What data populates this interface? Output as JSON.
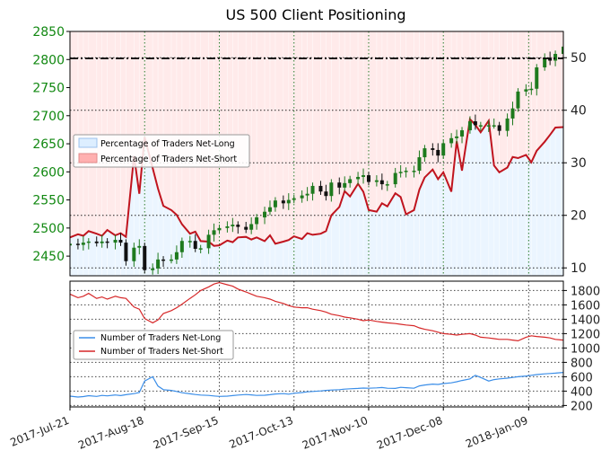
{
  "chart_data": {
    "title": "US 500 Client Positioning",
    "type": "line",
    "x_tick_labels": [
      "2017-Jul-21",
      "2017-Aug-18",
      "2017-Sep-15",
      "2017-Oct-13",
      "2017-Nov-10",
      "2017-Dec-08",
      "2018-Jan-09"
    ],
    "dates": [
      "2017-07-21",
      "2017-07-24",
      "2017-07-26",
      "2017-07-28",
      "2017-07-31",
      "2017-08-02",
      "2017-08-04",
      "2017-08-07",
      "2017-08-09",
      "2017-08-11",
      "2017-08-14",
      "2017-08-16",
      "2017-08-18",
      "2017-08-21",
      "2017-08-23",
      "2017-08-25",
      "2017-08-28",
      "2017-08-30",
      "2017-09-01",
      "2017-09-04",
      "2017-09-06",
      "2017-09-08",
      "2017-09-11",
      "2017-09-13",
      "2017-09-15",
      "2017-09-18",
      "2017-09-20",
      "2017-09-22",
      "2017-09-25",
      "2017-09-27",
      "2017-09-29",
      "2017-10-02",
      "2017-10-04",
      "2017-10-06",
      "2017-10-09",
      "2017-10-11",
      "2017-10-13",
      "2017-10-16",
      "2017-10-18",
      "2017-10-20",
      "2017-10-23",
      "2017-10-25",
      "2017-10-27",
      "2017-10-30",
      "2017-11-01",
      "2017-11-03",
      "2017-11-06",
      "2017-11-08",
      "2017-11-10",
      "2017-11-13",
      "2017-11-15",
      "2017-11-17",
      "2017-11-20",
      "2017-11-22",
      "2017-11-24",
      "2017-11-27",
      "2017-11-29",
      "2017-12-01",
      "2017-12-04",
      "2017-12-06",
      "2017-12-08",
      "2017-12-11",
      "2017-12-13",
      "2017-12-15",
      "2017-12-18",
      "2017-12-20",
      "2017-12-22",
      "2017-12-25",
      "2017-12-27",
      "2017-12-29",
      "2018-01-01",
      "2018-01-03",
      "2018-01-05",
      "2018-01-08",
      "2018-01-10",
      "2018-01-12",
      "2018-01-15",
      "2018-01-17",
      "2018-01-19",
      "2018-01-22"
    ],
    "panels": [
      {
        "name": "price",
        "left_axis": {
          "ticks": [
            2450,
            2500,
            2550,
            2600,
            2650,
            2700,
            2750,
            2800,
            2850
          ],
          "range": [
            2415,
            2850
          ]
        },
        "right_axis": {
          "ticks": [
            10,
            20,
            30,
            40,
            50
          ],
          "range": [
            8.5,
            55
          ]
        },
        "reference_line": {
          "axis": "left",
          "value": 2802,
          "style": "dash-dot"
        },
        "legend": {
          "position": "upper-left",
          "entries": [
            "Percentage of Traders Net-Long",
            "Percentage of Traders Net-Short"
          ]
        },
        "series": [
          {
            "name": "Percentage of Traders Net-Long",
            "type": "area",
            "axis": "right",
            "color": "#ddeeff",
            "values": [
              15.8,
              16.4,
              16.1,
              17.0,
              16.5,
              16.1,
              17.2,
              16.2,
              16.6,
              15.9,
              31.3,
              24.1,
              34.9,
              29.0,
              25.1,
              21.8,
              21.0,
              20.1,
              18.3,
              16.5,
              16.9,
              15.1,
              15.0,
              14.2,
              14.3,
              15.2,
              14.9,
              15.8,
              15.9,
              15.4,
              15.8,
              15.1,
              16.2,
              14.6,
              15.0,
              15.3,
              16.0,
              15.5,
              16.6,
              16.3,
              16.5,
              17.0,
              20.0,
              21.6,
              24.6,
              23.6,
              26.0,
              24.5,
              21.0,
              20.7,
              22.3,
              21.7,
              24.2,
              23.5,
              20.2,
              21.0,
              24.9,
              27.2,
              28.7,
              26.9,
              28.2,
              24.5,
              34.1,
              28.5,
              38.3,
              37.2,
              35.8,
              38.0,
              29.5,
              28.2,
              29.1,
              31.1,
              30.9,
              31.5,
              30.1,
              32.3,
              34.0,
              35.3,
              36.7,
              36.8
            ]
          },
          {
            "name": "Percentage of Traders Net-Short",
            "type": "area",
            "axis": "right",
            "color": "#ffd0d0",
            "values": [
              84.2,
              83.6,
              83.9,
              83.0,
              83.5,
              83.9,
              82.8,
              83.8,
              83.4,
              84.1,
              68.7,
              75.9,
              65.1,
              71.0,
              74.9,
              78.2,
              79.0,
              79.9,
              81.7,
              83.5,
              83.1,
              84.9,
              85.0,
              85.8,
              85.7,
              84.8,
              85.1,
              84.2,
              84.1,
              84.6,
              84.2,
              84.9,
              83.8,
              85.4,
              85.0,
              84.7,
              84.0,
              84.5,
              83.4,
              83.7,
              83.5,
              83.0,
              80.0,
              78.4,
              75.4,
              76.4,
              74.0,
              75.5,
              79.0,
              79.3,
              77.7,
              78.3,
              75.8,
              76.5,
              79.8,
              79.0,
              75.1,
              72.8,
              71.3,
              73.1,
              71.8,
              75.5,
              65.9,
              71.5,
              61.7,
              62.8,
              64.2,
              62.0,
              70.5,
              71.8,
              70.9,
              68.9,
              69.1,
              68.5,
              69.9,
              67.7,
              66.0,
              64.7,
              63.3,
              63.2
            ]
          },
          {
            "name": "Percentage of Traders Net-Long (line)",
            "type": "line",
            "axis": "right",
            "color": "#c0141e",
            "values": [
              15.8,
              16.4,
              16.1,
              17.0,
              16.5,
              16.1,
              17.2,
              16.2,
              16.6,
              15.9,
              31.3,
              24.1,
              34.9,
              29.0,
              25.1,
              21.8,
              21.0,
              20.1,
              18.3,
              16.5,
              16.9,
              15.1,
              15.0,
              14.2,
              14.3,
              15.2,
              14.9,
              15.8,
              15.9,
              15.4,
              15.8,
              15.1,
              16.2,
              14.6,
              15.0,
              15.3,
              16.0,
              15.5,
              16.6,
              16.3,
              16.5,
              17.0,
              20.0,
              21.6,
              24.6,
              23.6,
              26.0,
              24.5,
              21.0,
              20.7,
              22.3,
              21.7,
              24.2,
              23.5,
              20.2,
              21.0,
              24.9,
              27.2,
              28.7,
              26.9,
              28.2,
              24.5,
              34.1,
              28.5,
              38.3,
              37.2,
              35.8,
              38.0,
              29.5,
              28.2,
              29.1,
              31.1,
              30.9,
              31.5,
              30.1,
              32.3,
              34.0,
              35.3,
              36.7,
              36.8
            ]
          },
          {
            "name": "US 500 price",
            "type": "candlestick",
            "axis": "left",
            "up_color": "#1e7a1e",
            "down_color": "#111111",
            "close": [
              2472,
              2470,
              2474,
              2476,
              2473,
              2476,
              2474,
              2479,
              2474,
              2441,
              2465,
              2468,
              2425,
              2428,
              2444,
              2443,
              2444,
              2457,
              2477,
              2477,
              2463,
              2464,
              2488,
              2496,
              2500,
              2503,
              2506,
              2502,
              2497,
              2507,
              2519,
              2529,
              2537,
              2549,
              2544,
              2550,
              2553,
              2558,
              2561,
              2575,
              2565,
              2557,
              2581,
              2572,
              2580,
              2587,
              2591,
              2594,
              2582,
              2585,
              2578,
              2578,
              2598,
              2600,
              2602,
              2602,
              2626,
              2642,
              2639,
              2629,
              2651,
              2660,
              2663,
              2674,
              2690,
              2683,
              2683,
              2683,
              2683,
              2673,
              2695,
              2713,
              2743,
              2747,
              2748,
              2786,
              2802,
              2798,
              2810,
              2823
            ]
          }
        ]
      },
      {
        "name": "trader counts",
        "right_axis": {
          "ticks": [
            200,
            400,
            600,
            800,
            1000,
            1200,
            1400,
            1600,
            1800
          ],
          "range": [
            180,
            1930
          ]
        },
        "legend": {
          "position": "center-left",
          "entries": [
            "Number of Traders Net-Long",
            "Number of Traders Net-Short"
          ]
        },
        "series": [
          {
            "name": "Number of Traders Net-Long",
            "color": "#3b8ee8",
            "values": [
              330,
              318,
              324,
              336,
              326,
              340,
              334,
              346,
              338,
              350,
              365,
              380,
              540,
              600,
              470,
              420,
              410,
              395,
              378,
              362,
              352,
              345,
              340,
              332,
              326,
              330,
              338,
              345,
              352,
              348,
              340,
              342,
              350,
              360,
              365,
              358,
              370,
              380,
              390,
              395,
              402,
              410,
              415,
              420,
              428,
              432,
              438,
              442,
              440,
              445,
              450,
              440,
              438,
              452,
              448,
              440,
              472,
              485,
              498,
              492,
              505,
              515,
              530,
              548,
              570,
              620,
              590,
              540,
              560,
              570,
              580,
              590,
              600,
              610,
              620,
              630,
              640,
              645,
              650,
              660
            ]
          },
          {
            "name": "Number of Traders Net-Short",
            "color": "#d62728",
            "values": [
              1750,
              1700,
              1720,
              1760,
              1690,
              1710,
              1680,
              1720,
              1700,
              1690,
              1570,
              1540,
              1410,
              1350,
              1390,
              1480,
              1520,
              1560,
              1610,
              1690,
              1740,
              1800,
              1850,
              1890,
              1910,
              1880,
              1860,
              1820,
              1780,
              1750,
              1720,
              1700,
              1680,
              1650,
              1620,
              1590,
              1570,
              1560,
              1560,
              1540,
              1520,
              1500,
              1470,
              1450,
              1430,
              1420,
              1400,
              1380,
              1390,
              1370,
              1360,
              1350,
              1340,
              1330,
              1320,
              1310,
              1280,
              1260,
              1240,
              1220,
              1200,
              1190,
              1180,
              1190,
              1200,
              1180,
              1150,
              1140,
              1130,
              1120,
              1120,
              1110,
              1100,
              1150,
              1170,
              1160,
              1150,
              1140,
              1120,
              1110
            ]
          }
        ]
      }
    ]
  }
}
